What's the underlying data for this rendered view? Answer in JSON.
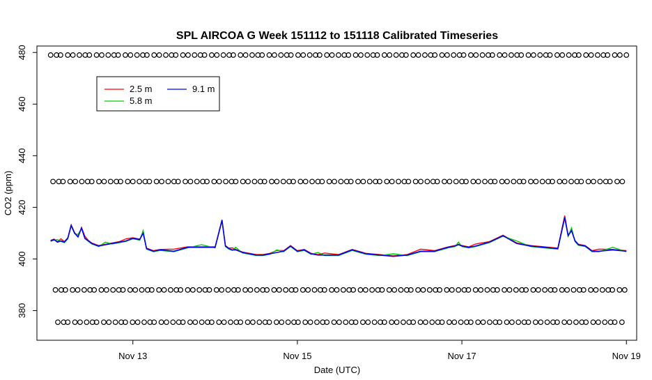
{
  "chart_data": {
    "type": "line",
    "title": "SPL AIRCOA G  Week 151112 to 151118  Calibrated Timeseries",
    "xlabel": "Date (UTC)",
    "ylabel": "CO2 (ppm)",
    "x_range": [
      "2015-11-12T00:00",
      "2015-11-19T00:00"
    ],
    "xlim": [
      "2015-11-11T20:00",
      "2015-11-19T03:00"
    ],
    "ylim": [
      368.5,
      482.5
    ],
    "x_ticks": [
      {
        "date": "2015-11-13",
        "label": "Nov 13"
      },
      {
        "date": "2015-11-15",
        "label": "Nov 15"
      },
      {
        "date": "2015-11-17",
        "label": "Nov 17"
      },
      {
        "date": "2015-11-19",
        "label": "Nov 19"
      }
    ],
    "y_ticks": [
      380,
      400,
      420,
      440,
      460,
      480
    ],
    "grid": false,
    "legend": {
      "placement": "top-left",
      "entries": [
        {
          "label": "2.5 m",
          "color": "#ff0000"
        },
        {
          "label": "5.8 m",
          "color": "#00cd00"
        },
        {
          "label": "9.1 m",
          "color": "#0000ff"
        }
      ]
    },
    "series": [
      {
        "name": "9.1 m",
        "color": "#0000ff",
        "x_hours": [
          0,
          1,
          2,
          3,
          4,
          5,
          6,
          7,
          8,
          9,
          10,
          11,
          12,
          14,
          16,
          18,
          20,
          22,
          24,
          26,
          27,
          28,
          30,
          32,
          36,
          40,
          44,
          48,
          50,
          51,
          52,
          53,
          54,
          56,
          58,
          60,
          62,
          64,
          66,
          68,
          70,
          72,
          74,
          76,
          78,
          80,
          84,
          88,
          92,
          96,
          100,
          104,
          108,
          112,
          116,
          118,
          119,
          120,
          122,
          124,
          128,
          132,
          136,
          140,
          144,
          148,
          150,
          151,
          152,
          153,
          154,
          156,
          158,
          160,
          164,
          168
        ],
        "values": [
          407,
          407.5,
          406.5,
          407,
          406.5,
          408,
          413,
          410,
          408.5,
          412,
          408,
          407,
          406,
          405,
          405.5,
          406,
          406.5,
          407,
          408,
          407.5,
          410,
          404,
          403,
          403.5,
          403,
          404.5,
          404.5,
          404.5,
          415,
          405,
          404,
          403.5,
          403.5,
          402.5,
          402,
          401.5,
          401.5,
          402,
          402.5,
          403,
          405,
          403,
          403.5,
          402,
          401.5,
          401.5,
          401.5,
          403.5,
          402,
          401.5,
          401,
          401.5,
          403,
          403,
          404.5,
          405,
          405.5,
          405,
          404.5,
          405,
          406.5,
          409,
          406,
          405,
          404.5,
          404,
          416,
          409,
          411,
          407,
          405.5,
          405,
          403,
          403,
          403.5,
          403
        ]
      }
    ],
    "scatter_rows": [
      479,
      430,
      388,
      375.5
    ]
  }
}
